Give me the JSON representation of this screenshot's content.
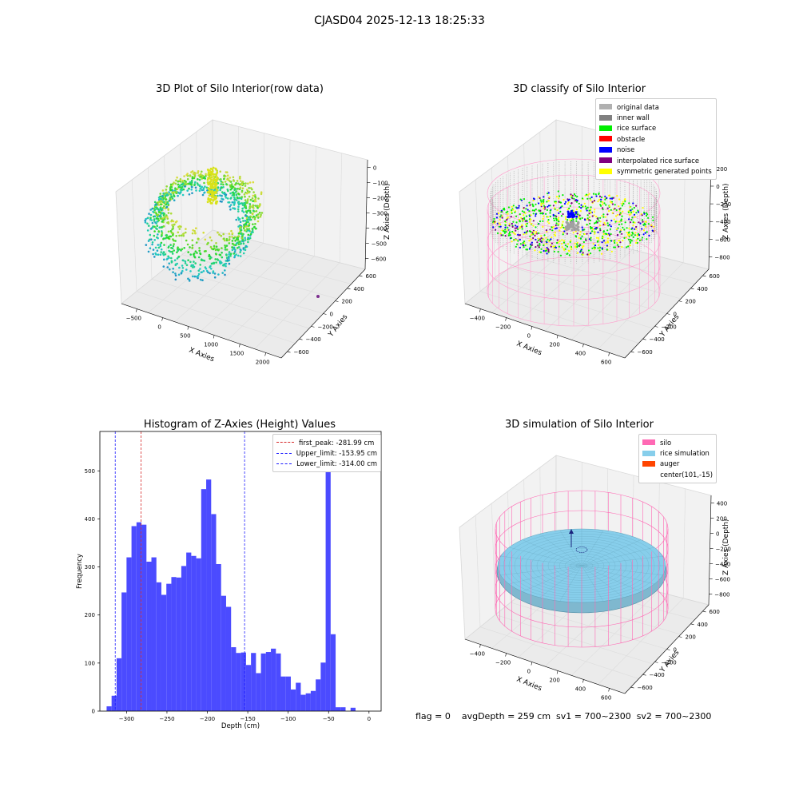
{
  "figure": {
    "suptitle": "CJASD04 2025-12-13 18:25:33",
    "bottom_status": "flag = 0    avgDepth = 259 cm  sv1 = 700~2300  sv2 = 700~2300"
  },
  "colors": {
    "histogram_bar": "#4b4bff",
    "first_peak": "#d62728",
    "limits": "#1a1aff",
    "original_data": "#b0b0b0",
    "inner_wall": "#808080",
    "rice_surface": "#00ee00",
    "obstacle": "#ff0000",
    "noise": "#0000ff",
    "interpolated_rice_surface": "#800080",
    "symmetric_generated_points": "#ffff00",
    "silo": "#ff69b4",
    "rice_simulation": "#87ceeb",
    "auger": "#ff4500"
  },
  "chart_data": [
    {
      "type": "scatter",
      "panel": "raw",
      "title": "3D Plot of Silo Interior(row data)",
      "xlabel": "X Axies",
      "ylabel": "Y Axies",
      "zlabel": "Z Axies (Depth)",
      "xticks": [
        "−500",
        "0",
        "500",
        "1000",
        "1500",
        "2000"
      ],
      "yticks": [
        "−600",
        "−400",
        "−200",
        "0",
        "200",
        "400",
        "600"
      ],
      "zticks": [
        "0",
        "−100",
        "−200",
        "−300",
        "−400",
        "−500",
        "−600"
      ],
      "xlim": [
        -600,
        2050
      ],
      "ylim": [
        -650,
        650
      ],
      "zlim": [
        -620,
        20
      ],
      "colormap": "viridis",
      "outlier_point": {
        "x": 1750,
        "y": 200,
        "z": -600
      }
    },
    {
      "type": "scatter",
      "panel": "classify",
      "title": "3D classify of Silo Interior",
      "xlabel": "X Axies",
      "ylabel": "Y Axies",
      "zlabel": "Z Axies (Depth)",
      "xticks": [
        "−400",
        "−200",
        "0",
        "200",
        "400",
        "600"
      ],
      "yticks": [
        "−600",
        "−400",
        "−200",
        "0",
        "200",
        "400",
        "600"
      ],
      "zticks": [
        "200",
        "0",
        "−200",
        "−400",
        "−600",
        "−800"
      ],
      "legend_position": "upper right",
      "legend": [
        "original data",
        "inner wall",
        "rice surface",
        "obstacle",
        "noise",
        "interpolated rice surface",
        "symmetric generated points"
      ]
    },
    {
      "type": "bar",
      "panel": "histogram",
      "title": "Histogram of Z-Axies (Height) Values",
      "xlabel": "Depth (cm)",
      "ylabel": "Frequency",
      "xticks": [
        "−300",
        "−250",
        "−200",
        "−150",
        "−100",
        "−50",
        "0"
      ],
      "yticks": [
        "0",
        "100",
        "200",
        "300",
        "400",
        "500"
      ],
      "xlim": [
        -333,
        15
      ],
      "ylim": [
        0,
        582
      ],
      "bin_start": -324.66,
      "bin_width": 6.16,
      "values": [
        10,
        32,
        110,
        247,
        320,
        385,
        393,
        388,
        311,
        320,
        268,
        242,
        265,
        279,
        278,
        302,
        330,
        323,
        318,
        462,
        482,
        410,
        306,
        240,
        217,
        133,
        121,
        122,
        96,
        121,
        79,
        120,
        123,
        130,
        120,
        72,
        72,
        45,
        59,
        34,
        37,
        42,
        66,
        101,
        556,
        160,
        8,
        8,
        0,
        7
      ],
      "lines": [
        {
          "name": "first_peak: -281.99 cm",
          "x": -281.99,
          "color": "#d62728"
        },
        {
          "name": "Upper_limit: -153.95 cm",
          "x": -153.95,
          "color": "#1a1aff"
        },
        {
          "name": "Lower_limit: -314.00 cm",
          "x": -314.0,
          "color": "#1a1aff"
        }
      ],
      "legend_position": "upper right"
    },
    {
      "type": "scatter",
      "panel": "simulation",
      "title": "3D simulation of Silo Interior",
      "xlabel": "X Axies",
      "ylabel": "Y Axies",
      "zlabel": "Z Axies (Depth)",
      "xticks": [
        "−400",
        "−200",
        "0",
        "200",
        "400",
        "600"
      ],
      "yticks": [
        "−600",
        "−400",
        "−200",
        "0",
        "200",
        "400",
        "600"
      ],
      "zticks": [
        "400",
        "200",
        "0",
        "−200",
        "−400",
        "−600",
        "−800"
      ],
      "legend_position": "upper right",
      "legend": [
        "silo",
        "rice simulation",
        "auger",
        "center(101,-15)"
      ]
    }
  ]
}
